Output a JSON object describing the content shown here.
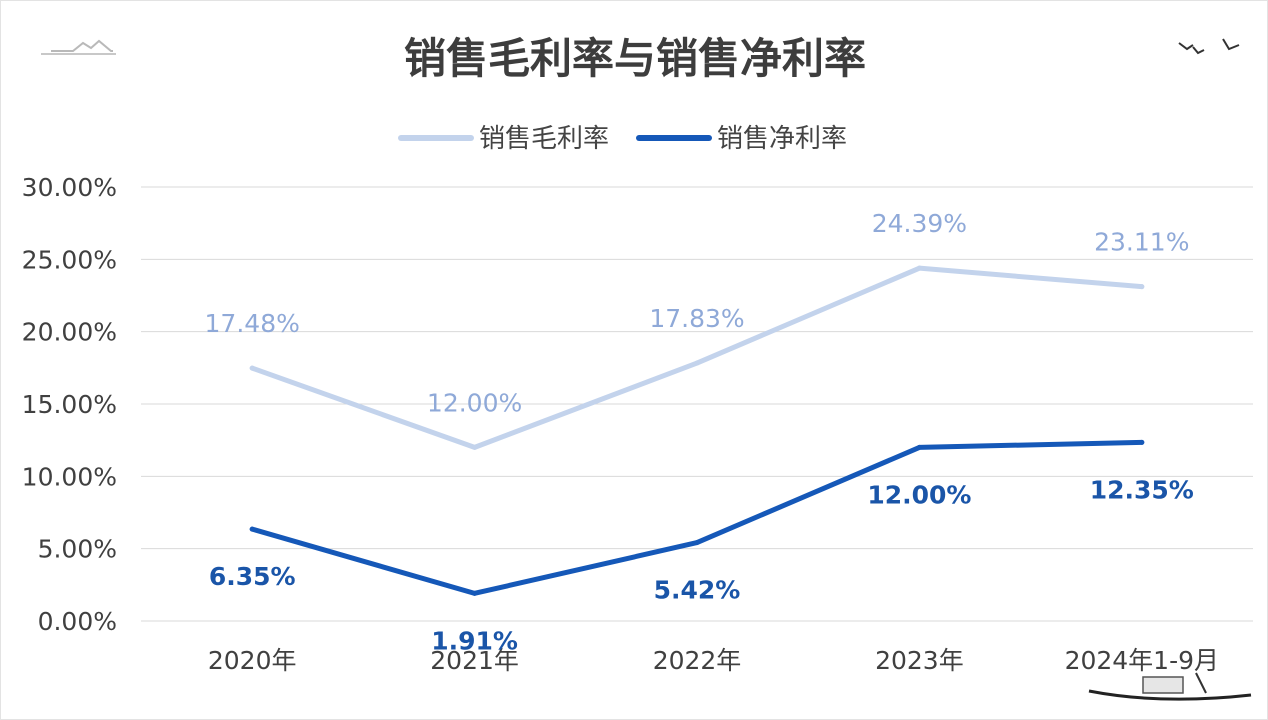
{
  "chart_data": {
    "type": "line",
    "title": "销售毛利率与销售净利率",
    "categories": [
      "2020年",
      "2021年",
      "2022年",
      "2023年",
      "2024年1-9月"
    ],
    "y_ticks": [
      "0.00%",
      "5.00%",
      "10.00%",
      "15.00%",
      "20.00%",
      "25.00%",
      "30.00%"
    ],
    "ylim": [
      0,
      30
    ],
    "grid": true,
    "legend_position": "top-center",
    "series": [
      {
        "name": "销售毛利率",
        "color": "#c3d3ec",
        "label_color": "#8fa9d8",
        "values": [
          17.48,
          12.0,
          17.83,
          24.39,
          23.11
        ],
        "labels": [
          "17.48%",
          "12.00%",
          "17.83%",
          "24.39%",
          "23.11%"
        ]
      },
      {
        "name": "销售净利率",
        "color": "#1558b8",
        "label_color": "#1a55a8",
        "values": [
          6.35,
          1.91,
          5.42,
          12.0,
          12.35
        ],
        "labels": [
          "6.35%",
          "1.91%",
          "5.42%",
          "12.00%",
          "12.35%"
        ]
      }
    ]
  }
}
